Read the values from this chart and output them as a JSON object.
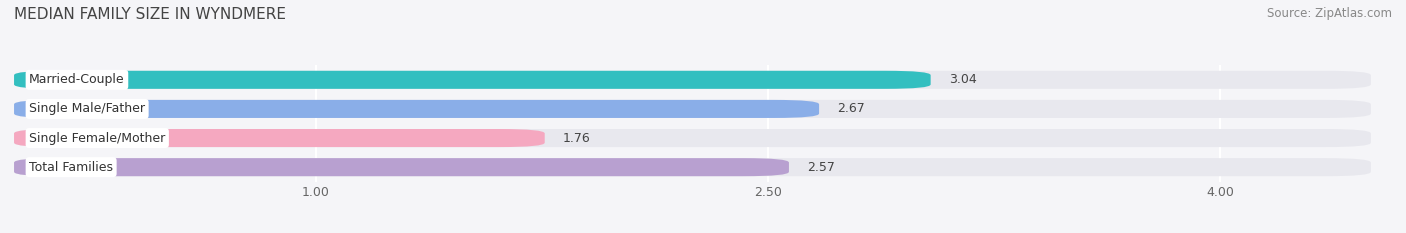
{
  "title": "MEDIAN FAMILY SIZE IN WYNDMERE",
  "source": "Source: ZipAtlas.com",
  "categories": [
    "Married-Couple",
    "Single Male/Father",
    "Single Female/Mother",
    "Total Families"
  ],
  "values": [
    3.04,
    2.67,
    1.76,
    2.57
  ],
  "bar_colors": [
    "#33bfc0",
    "#8aaee8",
    "#f5a8c0",
    "#b8a0d0"
  ],
  "background_color": "#f5f5f8",
  "bar_bg_color": "#e8e8ee",
  "xmin": 0.0,
  "xmax": 4.5,
  "xticks": [
    1.0,
    2.5,
    4.0
  ],
  "xticklabels": [
    "1.00",
    "2.50",
    "4.00"
  ],
  "value_fontsize": 9,
  "label_fontsize": 9,
  "title_fontsize": 11,
  "source_fontsize": 8.5,
  "bar_height": 0.62,
  "bar_gap": 0.15
}
